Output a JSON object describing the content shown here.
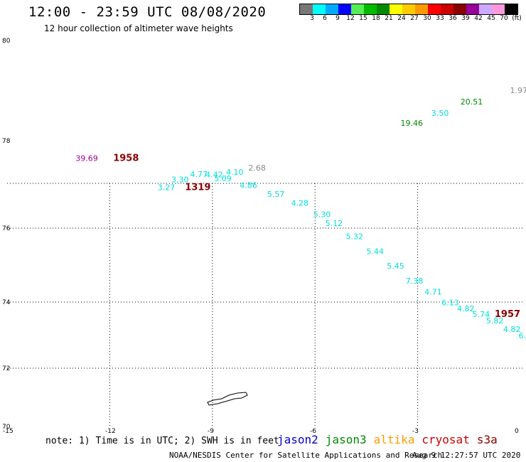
{
  "header": {
    "title": "12:00 - 23:59 UTC 08/08/2020",
    "subtitle": "12 hour collection of altimeter wave heights"
  },
  "colorbar": {
    "colors": [
      "#777777",
      "#00ffff",
      "#00aaff",
      "#0000ff",
      "#55ee55",
      "#00bb00",
      "#008800",
      "#ffff00",
      "#ffcc00",
      "#ff9900",
      "#ff0000",
      "#cc0000",
      "#880000",
      "#990099",
      "#ccaaff",
      "#ff99dd",
      "#000000"
    ],
    "labels": [
      "3",
      "6",
      "9",
      "12",
      "15",
      "18",
      "21",
      "24",
      "27",
      "30",
      "33",
      "36",
      "39",
      "42",
      "45",
      "70",
      "(ft)"
    ]
  },
  "axes": {
    "lat_labels": [
      "80",
      "78",
      "76",
      "74",
      "72",
      "70"
    ],
    "lon_labels": [
      "-15",
      "-12",
      "-9",
      "-6",
      "-3",
      "0"
    ]
  },
  "observations": [
    {
      "text": "1.97",
      "color": "#888888",
      "lon": -0.3,
      "lat": 78.95
    },
    {
      "text": "20.51",
      "color": "#008800",
      "lon": -1.75,
      "lat": 78.72
    },
    {
      "text": "3.50",
      "color": "#00dddd",
      "lon": -2.6,
      "lat": 78.5
    },
    {
      "text": "19.46",
      "color": "#008800",
      "lon": -3.5,
      "lat": 78.3
    },
    {
      "text": "39.69",
      "color": "#990099",
      "lon": -13.0,
      "lat": 77.05
    },
    {
      "text": "1958",
      "color": "#880000",
      "lon": -11.9,
      "lat": 77.05,
      "big": true
    },
    {
      "text": "2.68",
      "color": "#888888",
      "lon": -7.95,
      "lat": 76.6
    },
    {
      "text": "4.10",
      "color": "#00dddd",
      "lon": -8.6,
      "lat": 76.4
    },
    {
      "text": "4.77",
      "color": "#00dddd",
      "lon": -9.65,
      "lat": 76.3
    },
    {
      "text": "4.42",
      "color": "#00dddd",
      "lon": -9.2,
      "lat": 76.28
    },
    {
      "text": "5.09",
      "color": "#00dddd",
      "lon": -8.95,
      "lat": 76.1
    },
    {
      "text": "3.30",
      "color": "#00dddd",
      "lon": -10.2,
      "lat": 76.05
    },
    {
      "text": "3.27",
      "color": "#00dddd",
      "lon": -10.6,
      "lat": 75.85
    },
    {
      "text": "1319",
      "color": "#880000",
      "lon": -9.8,
      "lat": 75.85,
      "big": true
    },
    {
      "text": "4.86",
      "color": "#00dddd",
      "lon": -8.2,
      "lat": 75.9
    },
    {
      "text": "5.57",
      "color": "#00dddd",
      "lon": -7.4,
      "lat": 75.7
    },
    {
      "text": "4.28",
      "color": "#00dddd",
      "lon": -6.7,
      "lat": 75.5
    },
    {
      "text": "5.30",
      "color": "#00dddd",
      "lon": -6.05,
      "lat": 75.25
    },
    {
      "text": "5.12",
      "color": "#00dddd",
      "lon": -5.7,
      "lat": 75.05
    },
    {
      "text": "5.32",
      "color": "#00dddd",
      "lon": -5.1,
      "lat": 74.85
    },
    {
      "text": "5.44",
      "color": "#00dddd",
      "lon": -4.5,
      "lat": 74.65
    },
    {
      "text": "5.45",
      "color": "#00dddd",
      "lon": -3.9,
      "lat": 74.45
    },
    {
      "text": "7.38",
      "color": "#00dddd",
      "lon": -3.35,
      "lat": 74.25
    },
    {
      "text": "4.71",
      "color": "#00dddd",
      "lon": -2.8,
      "lat": 74.1
    },
    {
      "text": "6.13",
      "color": "#00dddd",
      "lon": -2.3,
      "lat": 73.9
    },
    {
      "text": "4.82",
      "color": "#00dddd",
      "lon": -1.85,
      "lat": 73.72
    },
    {
      "text": "5.74",
      "color": "#00dddd",
      "lon": -1.4,
      "lat": 73.55
    },
    {
      "text": "1957",
      "color": "#880000",
      "lon": -0.75,
      "lat": 73.55,
      "big": true
    },
    {
      "text": "5.82",
      "color": "#00dddd",
      "lon": -1.0,
      "lat": 73.35
    },
    {
      "text": "4.82",
      "color": "#00dddd",
      "lon": -0.5,
      "lat": 73.1
    },
    {
      "text": "6.",
      "color": "#00dddd",
      "lon": -0.05,
      "lat": 72.9
    }
  ],
  "footer": {
    "note": "note: 1) Time is in UTC; 2) SWH is in feet",
    "legend": [
      {
        "name": "jason2",
        "color": "#0000cc"
      },
      {
        "name": "jason3",
        "color": "#008800"
      },
      {
        "name": "altika",
        "color": "#ff9900"
      },
      {
        "name": "cryosat",
        "color": "#cc0000"
      },
      {
        "name": "s3a",
        "color": "#880000"
      }
    ],
    "credit": "NOAA/NESDIS Center for Satellite Applications and Research",
    "timestamp": "Aug  9 12:27:57 UTC 2020"
  }
}
